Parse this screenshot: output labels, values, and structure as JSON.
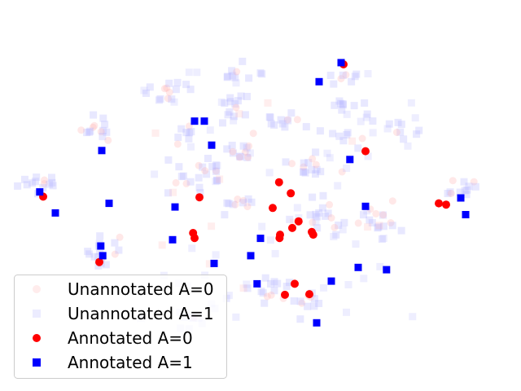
{
  "chart_data": {
    "type": "scatter",
    "title": "",
    "xlabel": "",
    "ylabel": "",
    "axes_visible": false,
    "grid": false,
    "legend_position": "lower-left",
    "xlim": [
      0,
      100
    ],
    "ylim": [
      0,
      100
    ],
    "colors": {
      "annotated_a0": "#ff0000",
      "annotated_a1": "#0000ff",
      "unannotated_a0": "#ffb3b3",
      "unannotated_a1": "#b3b3ff"
    },
    "legend": [
      {
        "label": "Unannotated A=0",
        "marker": "circle",
        "color": "#ffb3b3",
        "alpha": 0.25
      },
      {
        "label": "Unannotated A=1",
        "marker": "square",
        "color": "#b3b3ff",
        "alpha": 0.25
      },
      {
        "label": "Annotated A=0",
        "marker": "circle",
        "color": "#ff0000",
        "alpha": 1
      },
      {
        "label": "Annotated A=1",
        "marker": "square",
        "color": "#0000ff",
        "alpha": 1
      }
    ],
    "clusters": [
      {
        "cx": 4.8,
        "cy": 54.5,
        "rx": 2.2,
        "ry": 1.8,
        "n": 14
      },
      {
        "cx": 16.5,
        "cy": 70.8,
        "rx": 2.0,
        "ry": 2.0,
        "n": 14
      },
      {
        "cx": 17.5,
        "cy": 35.0,
        "rx": 2.5,
        "ry": 2.2,
        "n": 16
      },
      {
        "cx": 31.0,
        "cy": 81.0,
        "rx": 2.5,
        "ry": 2.0,
        "n": 14
      },
      {
        "cx": 45.0,
        "cy": 87.0,
        "rx": 2.0,
        "ry": 2.0,
        "n": 10
      },
      {
        "cx": 44.5,
        "cy": 76.0,
        "rx": 2.0,
        "ry": 3.0,
        "n": 14
      },
      {
        "cx": 34.5,
        "cy": 70.0,
        "rx": 1.6,
        "ry": 1.6,
        "n": 8
      },
      {
        "cx": 35.0,
        "cy": 55.0,
        "rx": 2.5,
        "ry": 2.5,
        "n": 14
      },
      {
        "cx": 46.5,
        "cy": 64.0,
        "rx": 2.0,
        "ry": 2.0,
        "n": 12
      },
      {
        "cx": 59.5,
        "cy": 60.0,
        "rx": 2.5,
        "ry": 2.0,
        "n": 16
      },
      {
        "cx": 66.5,
        "cy": 78.0,
        "rx": 1.8,
        "ry": 1.8,
        "n": 8
      },
      {
        "cx": 68.5,
        "cy": 68.0,
        "rx": 1.8,
        "ry": 1.8,
        "n": 8
      },
      {
        "cx": 77.5,
        "cy": 71.0,
        "rx": 2.2,
        "ry": 2.0,
        "n": 10
      },
      {
        "cx": 63.0,
        "cy": 45.0,
        "rx": 3.0,
        "ry": 2.5,
        "n": 18
      },
      {
        "cx": 74.5,
        "cy": 43.0,
        "rx": 2.5,
        "ry": 2.2,
        "n": 16
      },
      {
        "cx": 91.5,
        "cy": 53.0,
        "rx": 2.2,
        "ry": 2.0,
        "n": 12
      },
      {
        "cx": 51.5,
        "cy": 23.0,
        "rx": 2.5,
        "ry": 2.0,
        "n": 14
      },
      {
        "cx": 59.0,
        "cy": 19.0,
        "rx": 2.2,
        "ry": 2.0,
        "n": 12
      },
      {
        "cx": 33.0,
        "cy": 14.0,
        "rx": 3.5,
        "ry": 1.8,
        "n": 12
      },
      {
        "cx": 44.0,
        "cy": 48.0,
        "rx": 1.8,
        "ry": 1.8,
        "n": 10
      },
      {
        "cx": 66.5,
        "cy": 86.0,
        "rx": 1.6,
        "ry": 1.6,
        "n": 8
      },
      {
        "cx": 55.0,
        "cy": 72.0,
        "rx": 2.5,
        "ry": 2.0,
        "n": 12
      },
      {
        "cx": 40.0,
        "cy": 58.0,
        "rx": 2.0,
        "ry": 2.0,
        "n": 8
      }
    ],
    "series": [
      {
        "name": "Annotated A=0",
        "marker": "circle",
        "color": "#ff0000",
        "x": [
          67.0,
          71.5,
          53.8,
          56.2,
          52.5,
          57.8,
          56.5,
          54.0,
          60.5,
          60.8,
          53.9,
          5.5,
          37.5,
          36.2,
          36.5,
          86.5,
          88.0,
          17.0,
          57.0,
          55.0,
          60.0
        ],
        "y": [
          90.0,
          64.0,
          54.7,
          51.4,
          47.0,
          43.0,
          41.0,
          39.0,
          39.8,
          39.0,
          38.0,
          50.4,
          50.2,
          39.5,
          38.0,
          48.4,
          48.0,
          30.8,
          24.3,
          21.0,
          21.2
        ]
      },
      {
        "name": "Annotated A=1",
        "marker": "square",
        "color": "#0000ff",
        "x": [
          66.5,
          62.0,
          36.5,
          38.5,
          40.0,
          17.5,
          68.3,
          4.8,
          19.0,
          8.0,
          32.5,
          71.5,
          91.0,
          92.0,
          32.0,
          50.0,
          48.0,
          17.3,
          17.7,
          40.5,
          70.0,
          75.8,
          49.3,
          64.5,
          61.5
        ],
        "y": [
          90.5,
          84.8,
          73.0,
          73.0,
          65.8,
          64.2,
          61.5,
          51.8,
          48.4,
          45.5,
          47.3,
          47.5,
          50.0,
          45.0,
          37.5,
          37.9,
          32.7,
          35.6,
          32.7,
          30.4,
          29.2,
          28.5,
          24.3,
          25.1,
          12.6
        ]
      }
    ]
  }
}
